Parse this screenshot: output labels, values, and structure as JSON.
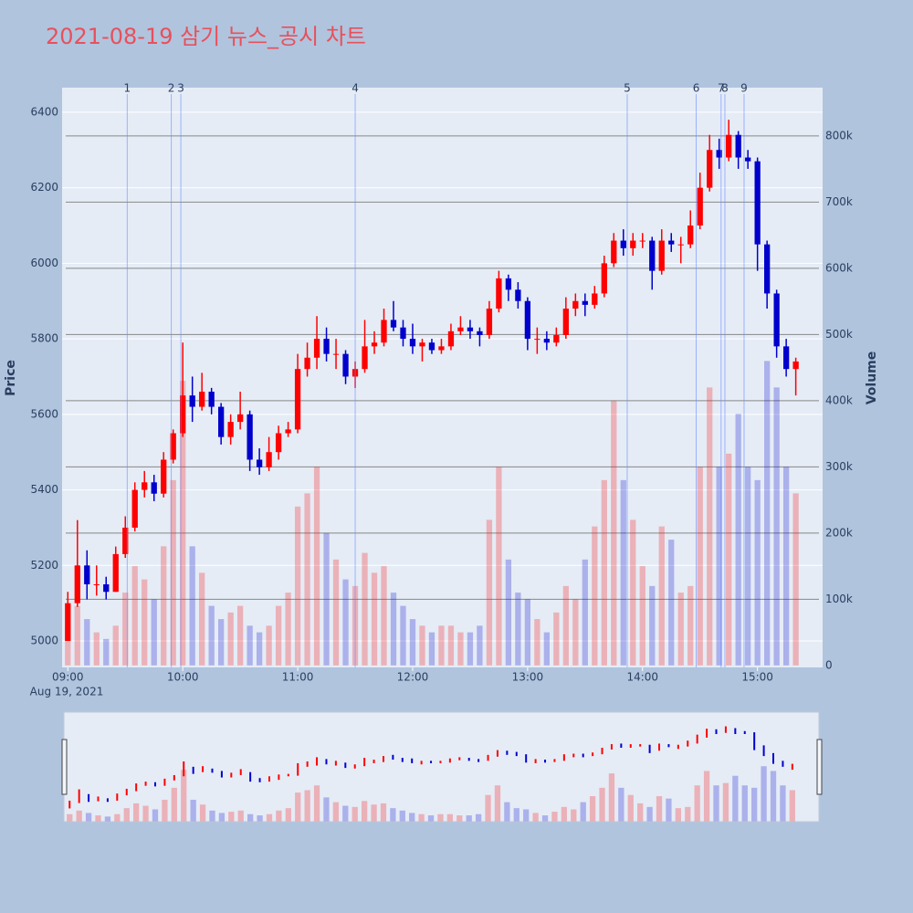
{
  "chart_data": {
    "type": "candlestick",
    "title": "2021-08-19 삼기 뉴스_공시 차트",
    "y_label": "Price",
    "y2_label": "Volume",
    "x_date_label": "Aug 19, 2021",
    "x": [
      "09:00",
      "09:05",
      "09:10",
      "09:15",
      "09:20",
      "09:25",
      "09:30",
      "09:35",
      "09:40",
      "09:45",
      "09:50",
      "09:55",
      "10:00",
      "10:05",
      "10:10",
      "10:15",
      "10:20",
      "10:25",
      "10:30",
      "10:35",
      "10:40",
      "10:45",
      "10:50",
      "10:55",
      "11:00",
      "11:05",
      "11:10",
      "11:15",
      "11:20",
      "11:25",
      "11:30",
      "11:35",
      "11:40",
      "11:45",
      "11:50",
      "11:55",
      "12:00",
      "12:05",
      "12:10",
      "12:15",
      "12:20",
      "12:25",
      "12:30",
      "12:35",
      "12:40",
      "12:45",
      "12:50",
      "12:55",
      "13:00",
      "13:05",
      "13:10",
      "13:15",
      "13:20",
      "13:25",
      "13:30",
      "13:35",
      "13:40",
      "13:45",
      "13:50",
      "13:55",
      "14:00",
      "14:05",
      "14:10",
      "14:15",
      "14:20",
      "14:25",
      "14:30",
      "14:35",
      "14:40",
      "14:45",
      "14:50",
      "14:55",
      "15:00",
      "15:05",
      "15:10",
      "15:15",
      "15:20"
    ],
    "open": [
      5000,
      5100,
      5200,
      5150,
      5150,
      5130,
      5230,
      5300,
      5400,
      5420,
      5390,
      5480,
      5550,
      5650,
      5620,
      5660,
      5620,
      5540,
      5580,
      5600,
      5480,
      5460,
      5500,
      5550,
      5560,
      5720,
      5750,
      5800,
      5760,
      5760,
      5700,
      5720,
      5780,
      5790,
      5850,
      5830,
      5800,
      5780,
      5790,
      5770,
      5780,
      5820,
      5830,
      5820,
      5810,
      5880,
      5960,
      5930,
      5900,
      5800,
      5800,
      5790,
      5810,
      5880,
      5900,
      5890,
      5920,
      6000,
      6060,
      6040,
      6060,
      6060,
      5980,
      6060,
      6050,
      6050,
      6100,
      6200,
      6300,
      6280,
      6340,
      6280,
      6270,
      6050,
      5920,
      5780,
      5720
    ],
    "high": [
      5130,
      5320,
      5240,
      5200,
      5170,
      5250,
      5330,
      5420,
      5450,
      5440,
      5500,
      5560,
      5790,
      5700,
      5710,
      5670,
      5630,
      5600,
      5660,
      5610,
      5510,
      5540,
      5570,
      5580,
      5760,
      5790,
      5860,
      5830,
      5800,
      5770,
      5740,
      5850,
      5820,
      5880,
      5900,
      5850,
      5840,
      5800,
      5800,
      5800,
      5840,
      5860,
      5850,
      5830,
      5900,
      5980,
      5970,
      5950,
      5910,
      5830,
      5820,
      5830,
      5910,
      5920,
      5920,
      5940,
      6020,
      6080,
      6090,
      6080,
      6080,
      6070,
      6090,
      6080,
      6070,
      6140,
      6240,
      6340,
      6330,
      6380,
      6350,
      6300,
      6280,
      6060,
      5930,
      5800,
      5750
    ],
    "low": [
      5000,
      5090,
      5110,
      5120,
      5110,
      5130,
      5220,
      5290,
      5380,
      5370,
      5380,
      5470,
      5540,
      5580,
      5610,
      5600,
      5520,
      5520,
      5560,
      5450,
      5440,
      5450,
      5480,
      5540,
      5550,
      5700,
      5720,
      5740,
      5720,
      5680,
      5670,
      5710,
      5760,
      5780,
      5820,
      5780,
      5760,
      5740,
      5760,
      5760,
      5770,
      5810,
      5800,
      5780,
      5800,
      5870,
      5900,
      5880,
      5770,
      5760,
      5770,
      5780,
      5800,
      5860,
      5860,
      5880,
      5910,
      5990,
      6020,
      6020,
      6040,
      5930,
      5970,
      6030,
      6000,
      6040,
      6090,
      6190,
      6250,
      6270,
      6250,
      6250,
      5980,
      5880,
      5750,
      5700,
      5650
    ],
    "close": [
      5100,
      5200,
      5150,
      5150,
      5130,
      5230,
      5300,
      5400,
      5420,
      5390,
      5480,
      5550,
      5650,
      5620,
      5660,
      5620,
      5540,
      5580,
      5600,
      5480,
      5460,
      5500,
      5550,
      5560,
      5720,
      5750,
      5800,
      5760,
      5760,
      5700,
      5720,
      5780,
      5790,
      5850,
      5830,
      5800,
      5780,
      5790,
      5770,
      5780,
      5820,
      5830,
      5820,
      5810,
      5880,
      5960,
      5930,
      5900,
      5800,
      5800,
      5790,
      5810,
      5880,
      5900,
      5890,
      5920,
      6000,
      6060,
      6040,
      6060,
      6060,
      5980,
      6060,
      6050,
      6050,
      6100,
      6200,
      6300,
      6280,
      6340,
      6280,
      6270,
      6050,
      5920,
      5780,
      5720,
      5740
    ],
    "volume": [
      60000,
      90000,
      70000,
      50000,
      40000,
      60000,
      110000,
      150000,
      130000,
      100000,
      180000,
      280000,
      430000,
      180000,
      140000,
      90000,
      70000,
      80000,
      90000,
      60000,
      50000,
      60000,
      90000,
      110000,
      240000,
      260000,
      300000,
      200000,
      160000,
      130000,
      120000,
      170000,
      140000,
      150000,
      110000,
      90000,
      70000,
      60000,
      50000,
      60000,
      60000,
      50000,
      50000,
      60000,
      220000,
      300000,
      160000,
      110000,
      100000,
      70000,
      50000,
      80000,
      120000,
      100000,
      160000,
      210000,
      280000,
      400000,
      280000,
      220000,
      150000,
      120000,
      210000,
      190000,
      110000,
      120000,
      300000,
      420000,
      300000,
      320000,
      380000,
      300000,
      280000,
      460000,
      420000,
      300000,
      260000
    ],
    "up_color": "#ff0000",
    "down_color": "#0000cd",
    "events": [
      {
        "label": "1",
        "x": "09:31"
      },
      {
        "label": "2",
        "x": "09:54"
      },
      {
        "label": "3",
        "x": "09:59"
      },
      {
        "label": "4",
        "x": "11:30"
      },
      {
        "label": "5",
        "x": "13:52"
      },
      {
        "label": "6",
        "x": "14:28"
      },
      {
        "label": "7",
        "x": "14:41"
      },
      {
        "label": "8",
        "x": "14:43"
      },
      {
        "label": "9",
        "x": "14:53"
      }
    ],
    "xlim": [
      "08:57",
      "15:34"
    ],
    "xticks": [
      "09:00",
      "10:00",
      "11:00",
      "12:00",
      "13:00",
      "14:00",
      "15:00"
    ],
    "ylim": [
      4930,
      6465
    ],
    "yticks": [
      5000,
      5200,
      5400,
      5600,
      5800,
      6000,
      6200,
      6400
    ],
    "y2lim": [
      -3000,
      873000
    ],
    "y2ticks": [
      0,
      {
        "value": 100000,
        "label": "100k"
      },
      {
        "value": 200000,
        "label": "200k"
      },
      {
        "value": 300000,
        "label": "300k"
      },
      {
        "value": 400000,
        "label": "400k"
      },
      {
        "value": 500000,
        "label": "500k"
      },
      {
        "value": 600000,
        "label": "600k"
      },
      {
        "value": 700000,
        "label": "700k"
      },
      {
        "value": 800000,
        "label": "800k"
      }
    ],
    "grid": true,
    "range_slider": true
  }
}
